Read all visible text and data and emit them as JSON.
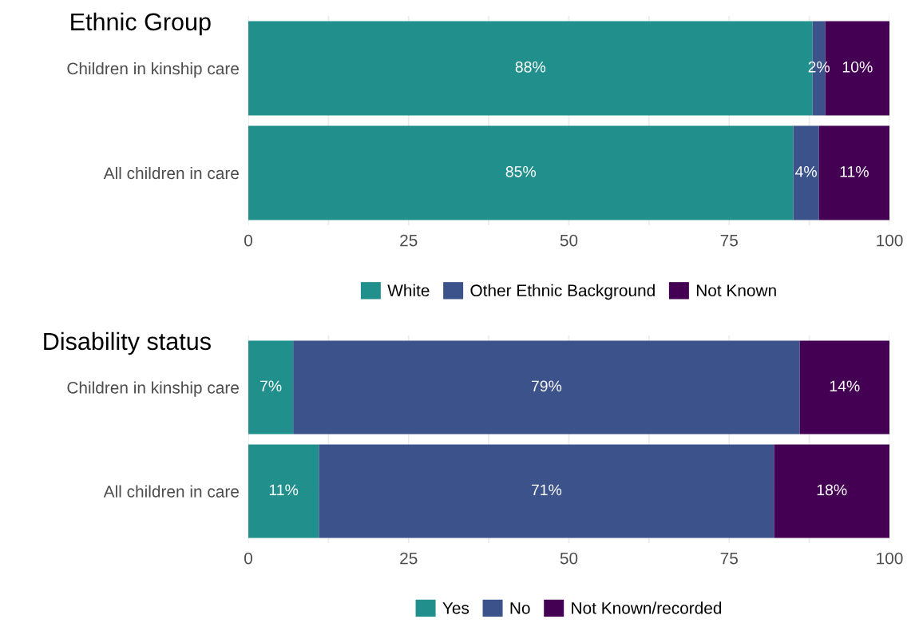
{
  "chart_data": [
    {
      "type": "bar",
      "orientation": "horizontal",
      "stacked": true,
      "title": "Ethnic Group",
      "categories": [
        "Children in kinship care",
        "All children in care"
      ],
      "series": [
        {
          "name": "White",
          "color": "#21908c",
          "values": [
            88,
            85
          ],
          "value_labels": [
            "88%",
            "85%"
          ]
        },
        {
          "name": "Other Ethnic Background",
          "color": "#3b528b",
          "values": [
            2,
            4
          ],
          "value_labels": [
            "2%",
            "4%"
          ]
        },
        {
          "name": "Not Known",
          "color": "#440154",
          "values": [
            10,
            11
          ],
          "value_labels": [
            "10%",
            "11%"
          ]
        }
      ],
      "xlim": [
        0,
        100
      ],
      "xticks": [
        0,
        {
          "value": 12.5,
          "label": null
        },
        25,
        {
          "value": 37.5,
          "label": null
        },
        50,
        {
          "value": 62.5,
          "label": null
        },
        75,
        {
          "value": 87.5,
          "label": null
        },
        100
      ],
      "grid": true,
      "legend": "bottom"
    },
    {
      "type": "bar",
      "orientation": "horizontal",
      "stacked": true,
      "title": "Disability status",
      "categories": [
        "Children in kinship care",
        "All children in care"
      ],
      "series": [
        {
          "name": "Yes",
          "color": "#21908c",
          "values": [
            7,
            11
          ],
          "value_labels": [
            "7%",
            "11%"
          ]
        },
        {
          "name": "No",
          "color": "#3b528b",
          "values": [
            79,
            71
          ],
          "value_labels": [
            "79%",
            "71%"
          ]
        },
        {
          "name": "Not Known/recorded",
          "color": "#440154",
          "values": [
            14,
            18
          ],
          "value_labels": [
            "14%",
            "18%"
          ]
        }
      ],
      "xlim": [
        0,
        100
      ],
      "xticks": [
        0,
        {
          "value": 12.5,
          "label": null
        },
        25,
        {
          "value": 37.5,
          "label": null
        },
        50,
        {
          "value": 62.5,
          "label": null
        },
        75,
        {
          "value": 87.5,
          "label": null
        },
        100
      ],
      "grid": true,
      "legend": "bottom"
    }
  ]
}
